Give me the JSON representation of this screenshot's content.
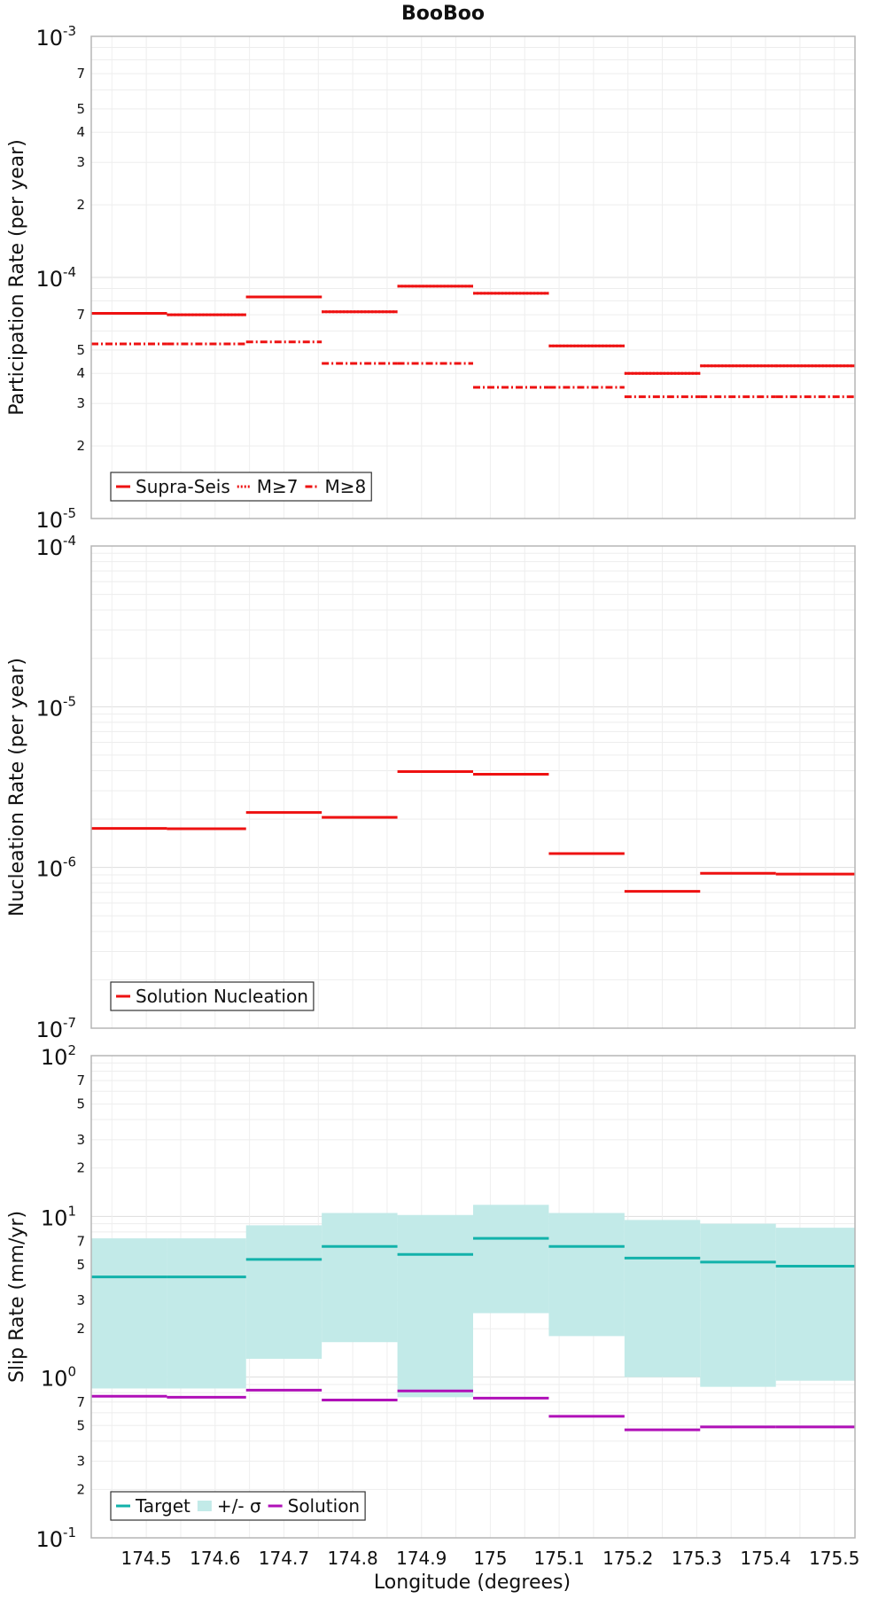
{
  "chart_data": {
    "title": "BooBoo",
    "xlabel": "Longitude (degrees)",
    "xlim": [
      174.42,
      175.53
    ],
    "xticks": [
      "174.5",
      "174.6",
      "174.7",
      "174.8",
      "174.9",
      "175",
      "175.1",
      "175.2",
      "175.3",
      "175.4",
      "175.5"
    ],
    "xtick_values": [
      174.5,
      174.6,
      174.7,
      174.8,
      174.9,
      175.0,
      175.1,
      175.2,
      175.3,
      175.4,
      175.5
    ],
    "bins": [
      174.42,
      174.53,
      174.645,
      174.755,
      174.865,
      174.975,
      175.085,
      175.195,
      175.305,
      175.415,
      175.53
    ],
    "panels": [
      {
        "type": "step",
        "ylabel": "Participation Rate (per year)",
        "yscale": "log",
        "ylim_exp": [
          -5,
          -3
        ],
        "major_labels": [
          {
            "exp": -5,
            "base": "10",
            "sup": "-5"
          },
          {
            "exp": -4,
            "base": "10",
            "sup": "-4"
          },
          {
            "exp": -3,
            "base": "10",
            "sup": "-3"
          }
        ],
        "minor_labels": [
          "2",
          "3",
          "4",
          "5",
          "7"
        ],
        "minor_label_values": [
          2,
          3,
          4,
          5,
          7
        ],
        "legend": {
          "position": "bottom-left",
          "entries": [
            {
              "label": "Supra-Seis",
              "style": "solid",
              "color": "#ee1111"
            },
            {
              "label": "M≥7",
              "style": "dotted",
              "color": "#ee1111"
            },
            {
              "label": "M≥8",
              "style": "dashdot",
              "color": "#ee1111"
            }
          ]
        },
        "series": [
          {
            "name": "Supra-Seis",
            "style": "solid",
            "color": "#ee1111",
            "values": [
              7.1e-05,
              7e-05,
              8.3e-05,
              7.2e-05,
              9.2e-05,
              8.6e-05,
              5.2e-05,
              4e-05,
              4.3e-05,
              4.3e-05
            ]
          },
          {
            "name": "M≥7",
            "style": "dotted",
            "color": "#ee1111",
            "values": [
              7.1e-05,
              7e-05,
              8.3e-05,
              7.2e-05,
              9.2e-05,
              8.6e-05,
              5.2e-05,
              4e-05,
              4.3e-05,
              4.3e-05
            ]
          },
          {
            "name": "M≥8",
            "style": "dashdot",
            "color": "#ee1111",
            "values": [
              5.3e-05,
              5.3e-05,
              5.4e-05,
              4.4e-05,
              4.4e-05,
              3.5e-05,
              3.5e-05,
              3.2e-05,
              3.2e-05,
              3.2e-05
            ]
          }
        ]
      },
      {
        "type": "step",
        "ylabel": "Nucleation Rate (per year)",
        "yscale": "log",
        "ylim_exp": [
          -7,
          -4
        ],
        "major_labels": [
          {
            "exp": -7,
            "base": "10",
            "sup": "-7"
          },
          {
            "exp": -6,
            "base": "10",
            "sup": "-6"
          },
          {
            "exp": -5,
            "base": "10",
            "sup": "-5"
          },
          {
            "exp": -4,
            "base": "10",
            "sup": "-4"
          }
        ],
        "minor_labels": [],
        "minor_label_values": [],
        "legend": {
          "position": "bottom-left",
          "entries": [
            {
              "label": "Solution Nucleation",
              "style": "solid",
              "color": "#ee1111"
            }
          ]
        },
        "series": [
          {
            "name": "Solution Nucleation",
            "style": "solid",
            "color": "#ee1111",
            "values": [
              1.75e-06,
              1.74e-06,
              2.2e-06,
              2.05e-06,
              3.95e-06,
              3.8e-06,
              1.22e-06,
              7.1e-07,
              9.2e-07,
              9.1e-07
            ]
          }
        ]
      },
      {
        "type": "step",
        "ylabel": "Slip Rate (mm/yr)",
        "yscale": "log",
        "ylim_exp": [
          -1,
          2
        ],
        "major_labels": [
          {
            "exp": -1,
            "base": "10",
            "sup": "-1"
          },
          {
            "exp": 0,
            "base": "10",
            "sup": "0"
          },
          {
            "exp": 1,
            "base": "10",
            "sup": "1"
          },
          {
            "exp": 2,
            "base": "10",
            "sup": "2"
          }
        ],
        "minor_labels": [
          "2",
          "3",
          "5",
          "7"
        ],
        "minor_label_values": [
          2,
          3,
          5,
          7
        ],
        "legend": {
          "position": "bottom-left",
          "entries": [
            {
              "label": "Target",
              "style": "solid",
              "color": "#12b2aa"
            },
            {
              "label": "+/- σ",
              "style": "band",
              "color": "#c2eae8"
            },
            {
              "label": "Solution",
              "style": "solid",
              "color": "#b010b8"
            }
          ]
        },
        "band": {
          "name": "+/- σ",
          "color": "#c2eae8",
          "lower": [
            0.85,
            0.85,
            1.3,
            1.65,
            0.75,
            2.5,
            1.8,
            1.0,
            0.87,
            0.95
          ],
          "upper": [
            7.3,
            7.3,
            8.8,
            10.5,
            10.2,
            11.8,
            10.5,
            9.5,
            9.0,
            8.5
          ]
        },
        "series": [
          {
            "name": "Target",
            "style": "solid",
            "color": "#12b2aa",
            "values": [
              4.2,
              4.2,
              5.4,
              6.5,
              5.8,
              7.3,
              6.5,
              5.5,
              5.2,
              4.9
            ]
          },
          {
            "name": "Solution",
            "style": "solid",
            "color": "#b010b8",
            "values": [
              0.76,
              0.75,
              0.83,
              0.72,
              0.82,
              0.74,
              0.57,
              0.47,
              0.49,
              0.49
            ]
          }
        ]
      }
    ]
  }
}
